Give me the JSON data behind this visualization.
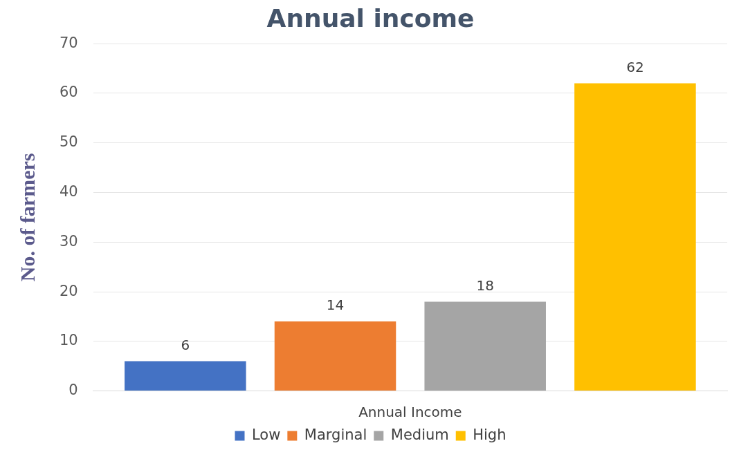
{
  "chart_data": {
    "type": "bar",
    "title": "Annual income",
    "xlabel": "Annual Income",
    "ylabel": "No. of farmers",
    "categories": [
      null
    ],
    "series": [
      {
        "name": "Low",
        "color": "#4472c4",
        "values": [
          6
        ]
      },
      {
        "name": "Marginal",
        "color": "#ed7d31",
        "values": [
          14
        ]
      },
      {
        "name": "Medium",
        "color": "#a5a5a5",
        "values": [
          18
        ]
      },
      {
        "name": "High",
        "color": "#ffc000",
        "values": [
          62
        ]
      }
    ],
    "ylim": [
      0,
      70
    ],
    "yticks": [
      0,
      10,
      20,
      30,
      40,
      50,
      60,
      70
    ],
    "grid": "y",
    "legend": "bottom",
    "data_labels": true
  }
}
